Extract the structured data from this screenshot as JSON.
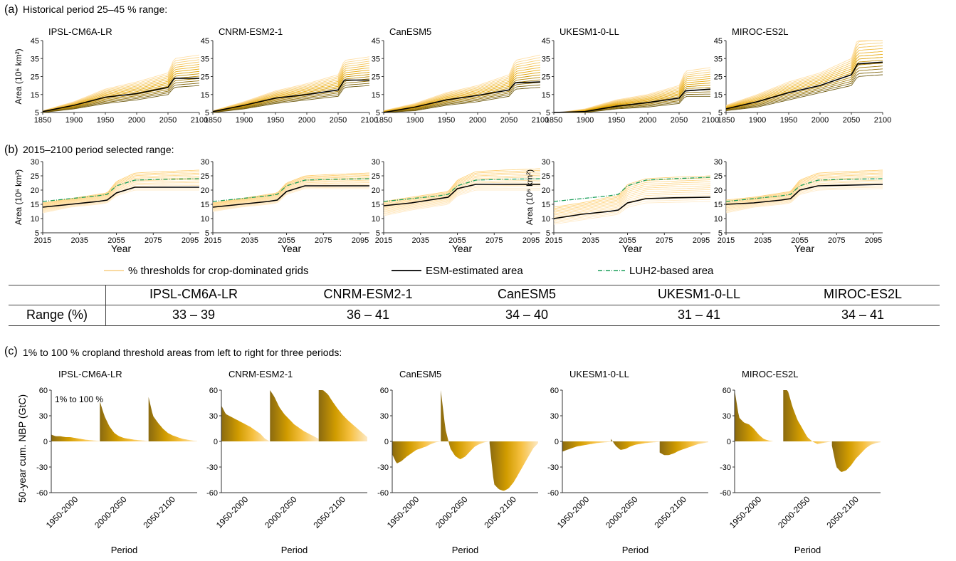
{
  "panel_a_title": "Historical period 25–45 % range:",
  "panel_b_title": "2015–2100 period selected range:",
  "panel_c_title": "1% to 100 % cropland threshold areas from left to right for three periods:",
  "panel_labels": [
    "(a)",
    "(b)",
    "(c)"
  ],
  "models": [
    "IPSL-CM6A-LR",
    "CNRM-ESM2-1",
    "CanESM5",
    "UKESM1-0-LL",
    "MIROC-ES2L"
  ],
  "legend": {
    "thresholds": "% thresholds for crop-dominated grids",
    "esm": "ESM-estimated area",
    "luh2": "LUH2-based area"
  },
  "table": {
    "row_label": "Range (%)",
    "values": [
      "33 – 39",
      "36 – 41",
      "34 – 40",
      "31 – 41",
      "34 – 41"
    ]
  },
  "annotation": "1% to 100 %",
  "colors": {
    "esm": "#000000",
    "luh2": "#1a9e5a",
    "threshold_light": "#ffe6b8",
    "threshold_dark": "#8a6a00",
    "bar_gold": "#d9a300"
  },
  "chart_data": [
    {
      "panel": "a",
      "type": "line",
      "ylabel": "Area (10⁶ km²)",
      "x_ticks": [
        1850,
        1900,
        1950,
        2000,
        2050,
        2100
      ],
      "xlim": [
        1850,
        2100
      ],
      "ylim": [
        5,
        45
      ],
      "y_ticks": [
        5,
        15,
        25,
        35,
        45
      ],
      "x": [
        1850,
        1900,
        1950,
        2000,
        2050,
        2060,
        2100
      ],
      "series": [
        {
          "model": "IPSL-CM6A-LR",
          "esm": [
            5.5,
            9,
            13.5,
            15.5,
            19,
            24,
            24
          ],
          "threshold_low": [
            5,
            7,
            10,
            12,
            15,
            19,
            20
          ],
          "threshold_high": [
            6,
            11,
            18,
            22,
            27,
            35,
            37
          ]
        },
        {
          "model": "CNRM-ESM2-1",
          "esm": [
            5.5,
            9,
            13,
            15,
            17.5,
            23,
            23
          ],
          "threshold_low": [
            5,
            7,
            10,
            12,
            14,
            19,
            20
          ],
          "threshold_high": [
            6,
            11,
            17,
            21,
            26,
            34,
            36
          ]
        },
        {
          "model": "CanESM5",
          "esm": [
            5,
            8,
            12,
            14.5,
            17.5,
            21.5,
            22
          ],
          "threshold_low": [
            5,
            6,
            9,
            11,
            14,
            18,
            19
          ],
          "threshold_high": [
            6,
            10,
            16,
            20,
            26,
            34,
            37
          ]
        },
        {
          "model": "UKESM1-0-LL",
          "esm": [
            4,
            5.5,
            8.5,
            10.5,
            13,
            17,
            18
          ],
          "threshold_low": [
            4,
            5,
            7,
            8,
            10,
            14,
            14
          ],
          "threshold_high": [
            4.5,
            7,
            12,
            15,
            20,
            28,
            30
          ]
        },
        {
          "model": "MIROC-ES2L",
          "esm": [
            7,
            11,
            16,
            20,
            26,
            32,
            33
          ],
          "threshold_low": [
            6,
            8,
            12,
            16,
            20,
            25,
            26
          ],
          "threshold_high": [
            9,
            15,
            22,
            27,
            35,
            46,
            47
          ]
        }
      ]
    },
    {
      "panel": "b",
      "type": "line",
      "ylabel": "Area (10⁶ km²)",
      "xlabel": "Year",
      "x_ticks": [
        2015,
        2035,
        2055,
        2075,
        2095
      ],
      "xlim": [
        2015,
        2100
      ],
      "ylim": [
        5,
        30
      ],
      "y_ticks": [
        5,
        10,
        15,
        20,
        25,
        30
      ],
      "x": [
        2015,
        2030,
        2045,
        2050,
        2055,
        2065,
        2080,
        2100
      ],
      "series": [
        {
          "model": "IPSL-CM6A-LR",
          "esm": [
            14,
            15,
            16,
            16.5,
            19,
            21,
            21,
            21
          ],
          "luh2": [
            16,
            17,
            18,
            18.5,
            21.5,
            23.5,
            23.8,
            24
          ],
          "threshold_low": [
            12,
            14,
            15,
            15.5,
            18,
            20,
            20,
            20
          ],
          "threshold_high": [
            15.5,
            17,
            18.5,
            19,
            23,
            26,
            26.5,
            27
          ]
        },
        {
          "model": "CNRM-ESM2-1",
          "esm": [
            14,
            15,
            16,
            16.5,
            19.5,
            21.5,
            21.5,
            21.5
          ],
          "luh2": [
            16,
            17,
            18,
            18.5,
            21.5,
            23.5,
            23.8,
            24
          ],
          "threshold_low": [
            12.5,
            14,
            15,
            15.5,
            18.5,
            20.5,
            20.5,
            20.5
          ],
          "threshold_high": [
            15.5,
            17,
            18.5,
            19,
            22.5,
            25,
            25.5,
            26
          ]
        },
        {
          "model": "CanESM5",
          "esm": [
            14.5,
            15.5,
            17,
            17.5,
            20.5,
            22,
            22,
            22
          ],
          "luh2": [
            16,
            17,
            18,
            18.5,
            21.5,
            23.5,
            23.8,
            24
          ],
          "threshold_low": [
            11,
            13,
            14.5,
            15,
            18,
            20,
            20,
            20
          ],
          "threshold_high": [
            16,
            17.5,
            19,
            19.5,
            23.5,
            26.5,
            27,
            27.5
          ]
        },
        {
          "model": "UKESM1-0-LL",
          "esm": [
            10,
            11.5,
            12.5,
            13,
            15.5,
            17,
            17.3,
            17.5
          ],
          "luh2": [
            16,
            17,
            18,
            18.5,
            21.5,
            23.5,
            24,
            24.5
          ],
          "threshold_low": [
            8,
            9.5,
            11,
            11.5,
            14,
            15.5,
            15.7,
            16
          ],
          "threshold_high": [
            14,
            15.5,
            17.5,
            18,
            22,
            24,
            24.5,
            25
          ]
        },
        {
          "model": "MIROC-ES2L",
          "esm": [
            15,
            15.5,
            16.5,
            17,
            20,
            21.5,
            21.7,
            22
          ],
          "luh2": [
            16,
            17,
            18,
            18.5,
            21.5,
            23.5,
            23.8,
            24
          ],
          "threshold_low": [
            12,
            14,
            15,
            15.5,
            18.5,
            20,
            20.3,
            20.5
          ],
          "threshold_high": [
            16.5,
            17.5,
            19,
            19.5,
            23.5,
            26,
            26.5,
            27
          ]
        }
      ]
    },
    {
      "panel": "c",
      "type": "area",
      "ylabel": "50-year cum. NBP (GtC)",
      "xlabel": "Period",
      "categories": [
        "1950-2000",
        "2000-2050",
        "2050-2100"
      ],
      "ylim": [
        -60,
        60
      ],
      "y_ticks": [
        -60,
        -30,
        0,
        30,
        60
      ],
      "threshold_percent": [
        1,
        10,
        20,
        30,
        40,
        50,
        60,
        70,
        80,
        90,
        100
      ],
      "series": [
        {
          "model": "IPSL-CM6A-LR",
          "periods": [
            [
              8,
              6,
              6,
              5,
              5,
              4,
              3,
              2,
              1.5,
              1,
              0.5
            ],
            [
              47,
              30,
              18,
              10,
              6,
              4,
              3,
              2,
              1.5,
              1,
              0.5
            ],
            [
              52,
              30,
              22,
              15,
              10,
              7,
              5,
              3,
              2,
              1,
              0.5
            ]
          ]
        },
        {
          "model": "CNRM-ESM2-1",
          "periods": [
            [
              42,
              32,
              29,
              26,
              23,
              20,
              17,
              13,
              9,
              3,
              0
            ],
            [
              60,
              52,
              40,
              32,
              26,
              20,
              16,
              12,
              9,
              6,
              3
            ],
            [
              60,
              60,
              55,
              46,
              38,
              31,
              25,
              20,
              15,
              10,
              5
            ]
          ]
        },
        {
          "model": "CanESM5",
          "periods": [
            [
              -15,
              -26,
              -23,
              -18,
              -14,
              -10,
              -8,
              -6,
              -3,
              -1,
              0
            ],
            [
              60,
              15,
              -8,
              -17,
              -21,
              -18,
              -12,
              -6,
              -3,
              -1,
              0
            ],
            [
              -2,
              -50,
              -56,
              -58,
              -55,
              -48,
              -38,
              -28,
              -18,
              -8,
              -2
            ]
          ]
        },
        {
          "model": "UKESM1-0-LL",
          "periods": [
            [
              -12,
              -10,
              -8,
              -6,
              -5,
              -4,
              -3,
              -2,
              -1.5,
              -1,
              -0.5
            ],
            [
              3,
              -5,
              -10,
              -9,
              -6,
              -4,
              -3,
              -2,
              -1.5,
              -1,
              -0.5
            ],
            [
              -13,
              -16,
              -16,
              -14,
              -11,
              -9,
              -7,
              -5,
              -3,
              -2,
              -1
            ]
          ]
        },
        {
          "model": "MIROC-ES2L",
          "periods": [
            [
              60,
              28,
              22,
              20,
              15,
              8,
              3,
              1,
              0,
              0,
              0
            ],
            [
              60,
              60,
              40,
              25,
              15,
              5,
              0,
              -3,
              -2,
              -1,
              0
            ],
            [
              -5,
              -30,
              -36,
              -34,
              -28,
              -20,
              -14,
              -8,
              -4,
              -2,
              -1
            ]
          ]
        }
      ]
    }
  ]
}
